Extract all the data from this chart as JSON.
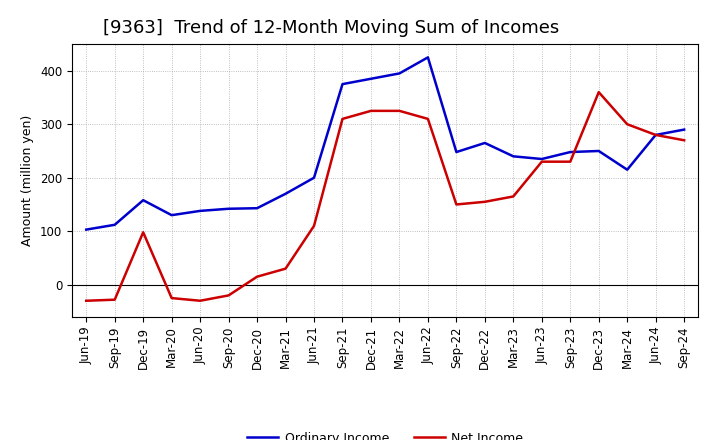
{
  "title": "[9363]  Trend of 12-Month Moving Sum of Incomes",
  "ylabel": "Amount (million yen)",
  "x_labels": [
    "Jun-19",
    "Sep-19",
    "Dec-19",
    "Mar-20",
    "Jun-20",
    "Sep-20",
    "Dec-20",
    "Mar-21",
    "Jun-21",
    "Sep-21",
    "Dec-21",
    "Mar-22",
    "Jun-22",
    "Sep-22",
    "Dec-22",
    "Mar-23",
    "Jun-23",
    "Sep-23",
    "Dec-23",
    "Mar-24",
    "Jun-24",
    "Sep-24"
  ],
  "ordinary_income": [
    103,
    112,
    158,
    130,
    138,
    142,
    143,
    170,
    200,
    375,
    385,
    395,
    425,
    248,
    265,
    240,
    235,
    248,
    250,
    215,
    280,
    290
  ],
  "net_income": [
    -30,
    -28,
    98,
    -25,
    -30,
    -20,
    15,
    30,
    110,
    310,
    325,
    325,
    310,
    150,
    155,
    165,
    230,
    230,
    360,
    300,
    280,
    270
  ],
  "ordinary_income_color": "#0000cc",
  "net_income_color": "#cc0000",
  "ylim_min": -60,
  "ylim_max": 450,
  "yticks": [
    0,
    100,
    200,
    300,
    400
  ],
  "background_color": "#ffffff",
  "plot_bg_color": "#ffffff",
  "grid_color": "#aaaaaa",
  "line_width": 1.8,
  "legend_ordinary": "Ordinary Income",
  "legend_net": "Net Income",
  "title_fontsize": 13,
  "axis_label_fontsize": 9,
  "tick_fontsize": 8.5,
  "legend_fontsize": 9
}
